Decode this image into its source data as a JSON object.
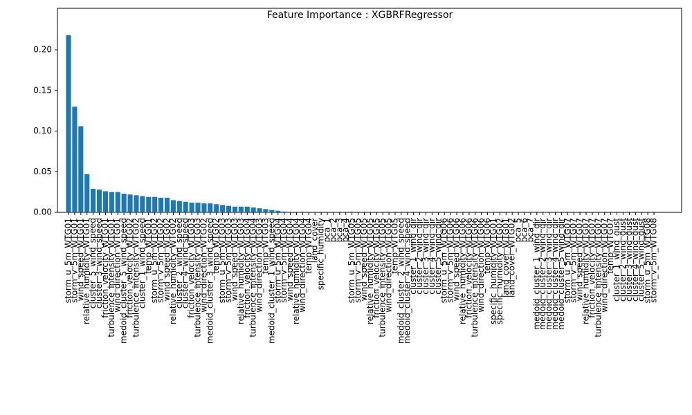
{
  "chart_data": {
    "type": "bar",
    "title": "Feature Importance : XGBRFRegressor",
    "categories": [
      "storm_u_5m_WTG01",
      "storm_v_5m_WTG01",
      "wind_speed_WTG01",
      "relative_humidity_WTG01",
      "cluster_5_wind_speed",
      "cluster_3_wind_speed",
      "friction_velocity_WTG01",
      "turbulence_intensity_WTG01",
      "wind_direction_WTG01",
      "medoid_cluster_5_wind_speed",
      "friction_velocity_WTG02",
      "turbulence_intensity_WTG02",
      "cluster_1_wind_speed",
      "temp_WTG01",
      "storm_u_5m_WTG02",
      "storm_v_5m_WTG02",
      "wind_speed_WTG02",
      "relative_humidity_WTG02",
      "cluster_2_wind_speed",
      "cluster_4_wind_speed",
      "friction_velocity_WTG03",
      "turbulence_intensity_WTG03",
      "wind_direction_WTG02",
      "medoid_cluster_3_wind_speed",
      "temp_WTG02",
      "storm_u_5m_WTG03",
      "storm_v_5m_WTG03",
      "wind_speed_WTG03",
      "relative_humidity_WTG03",
      "friction_velocity_WTG04",
      "turbulence_intensity_WTG04",
      "wind_direction_WTG03",
      "temp_WTG03",
      "medoid_cluster_1_wind_speed",
      "storm_u_5m_WTG04",
      "storm_v_5m_WTG04",
      "wind_speed_WTG04",
      "relative_humidity_WTG04",
      "wind_direction_WTG04",
      "temp_WTG04",
      "land_cover",
      "specific_humidity",
      "pca_1",
      "pca_2",
      "pca_3",
      "pca_4",
      "storm_u_5m_WTG05",
      "storm_v_5m_WTG05",
      "wind_speed_WTG05",
      "relative_humidity_WTG05",
      "friction_velocity_WTG05",
      "turbulence_intensity_WTG05",
      "wind_direction_WTG05",
      "temp_WTG05",
      "medoid_cluster_2_wind_speed",
      "medoid_cluster_4_wind_speed",
      "cluster_1_wind_dir",
      "cluster_2_wind_dir",
      "cluster_3_wind_dir",
      "cluster_4_wind_dir",
      "cluster_5_wind_dir",
      "storm_u_5m_WTG06",
      "storm_v_5m_WTG06",
      "wind_speed_WTG06",
      "relative_humidity_WTG06",
      "friction_velocity_WTG06",
      "turbulence_intensity_WTG06",
      "wind_direction_WTG06",
      "temp_WTG06",
      "specific_humidity_WTG01",
      "specific_humidity_WTG02",
      "land_cover_WTG01",
      "land_cover_WTG02",
      "pca_5",
      "pca_6",
      "pca_7",
      "medoid_cluster_1_wind_dir",
      "medoid_cluster_2_wind_dir",
      "medoid_cluster_3_wind_dir",
      "medoid_cluster_4_wind_dir",
      "medoid_cluster_5_wind_dir",
      "storm_u_5m_WTG07",
      "storm_v_5m_WTG07",
      "wind_speed_WTG07",
      "relative_humidity_WTG07",
      "friction_velocity_WTG07",
      "turbulence_intensity_WTG07",
      "wind_direction_WTG07",
      "temp_WTG07",
      "cluster_1_wind_gust",
      "cluster_2_wind_gust",
      "cluster_3_wind_gust",
      "cluster_4_wind_gust",
      "cluster_5_wind_gust",
      "storm_u_5m_WTG08",
      "storm_v_5m_WTG08"
    ],
    "values": [
      0.218,
      0.13,
      0.106,
      0.047,
      0.029,
      0.028,
      0.026,
      0.025,
      0.025,
      0.023,
      0.022,
      0.021,
      0.02,
      0.019,
      0.019,
      0.018,
      0.018,
      0.015,
      0.014,
      0.013,
      0.012,
      0.012,
      0.011,
      0.011,
      0.01,
      0.009,
      0.008,
      0.007,
      0.007,
      0.007,
      0.006,
      0.005,
      0.004,
      0.003,
      0.002,
      0.001,
      0,
      0,
      0,
      0,
      0,
      0,
      0,
      0,
      0,
      0,
      0,
      0,
      0,
      0,
      0,
      0,
      0,
      0,
      0,
      0,
      0,
      0,
      0,
      0,
      0,
      0,
      0,
      0,
      0,
      0,
      0,
      0,
      0,
      0,
      0,
      0,
      0,
      0,
      0,
      0,
      0,
      0,
      0,
      0,
      0,
      0,
      0,
      0,
      0,
      0,
      0,
      0,
      0,
      0,
      0,
      0,
      0,
      0,
      0,
      0
    ],
    "color": "#1f77b4",
    "ylim": [
      0,
      0.2511
    ],
    "yticks": [
      {
        "value": 0,
        "label": "0.00"
      },
      {
        "value": 0.05,
        "label": "0.05"
      },
      {
        "value": 0.1,
        "label": "0.10"
      },
      {
        "value": 0.15,
        "label": "0.15"
      },
      {
        "value": 0.2,
        "label": "0.20"
      }
    ],
    "grid": false
  }
}
